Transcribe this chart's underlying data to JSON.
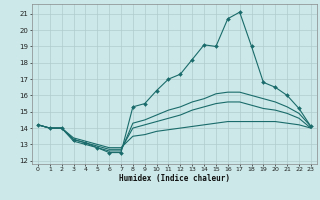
{
  "title": "",
  "xlabel": "Humidex (Indice chaleur)",
  "xlim": [
    -0.5,
    23.5
  ],
  "ylim": [
    11.8,
    21.6
  ],
  "yticks": [
    12,
    13,
    14,
    15,
    16,
    17,
    18,
    19,
    20,
    21
  ],
  "xticks": [
    0,
    1,
    2,
    3,
    4,
    5,
    6,
    7,
    8,
    9,
    10,
    11,
    12,
    13,
    14,
    15,
    16,
    17,
    18,
    19,
    20,
    21,
    22,
    23
  ],
  "background_color": "#cce8e8",
  "grid_color": "#b0cccc",
  "line_color": "#1a6b6b",
  "lines": [
    {
      "x": [
        0,
        1,
        2,
        3,
        4,
        5,
        6,
        7,
        8,
        9,
        10,
        11,
        12,
        13,
        14,
        15,
        16,
        17,
        18,
        19,
        20,
        21,
        22,
        23
      ],
      "y": [
        14.2,
        14.0,
        14.0,
        13.3,
        13.1,
        12.8,
        12.5,
        12.5,
        15.3,
        15.5,
        16.3,
        17.0,
        17.3,
        18.2,
        19.1,
        19.0,
        20.7,
        21.1,
        19.0,
        16.8,
        16.5,
        16.0,
        15.2,
        14.1
      ],
      "has_marker": true
    },
    {
      "x": [
        0,
        1,
        2,
        3,
        4,
        5,
        6,
        7,
        8,
        9,
        10,
        11,
        12,
        13,
        14,
        15,
        16,
        17,
        18,
        19,
        20,
        21,
        22,
        23
      ],
      "y": [
        14.2,
        14.0,
        14.0,
        13.2,
        13.0,
        12.8,
        12.6,
        12.6,
        14.3,
        14.5,
        14.8,
        15.1,
        15.3,
        15.6,
        15.8,
        16.1,
        16.2,
        16.2,
        16.0,
        15.8,
        15.6,
        15.3,
        14.9,
        14.1
      ],
      "has_marker": false
    },
    {
      "x": [
        0,
        1,
        2,
        3,
        4,
        5,
        6,
        7,
        8,
        9,
        10,
        11,
        12,
        13,
        14,
        15,
        16,
        17,
        18,
        19,
        20,
        21,
        22,
        23
      ],
      "y": [
        14.2,
        14.0,
        14.0,
        13.3,
        13.1,
        12.9,
        12.7,
        12.7,
        14.0,
        14.2,
        14.4,
        14.6,
        14.8,
        15.1,
        15.3,
        15.5,
        15.6,
        15.6,
        15.4,
        15.2,
        15.1,
        14.9,
        14.6,
        14.0
      ],
      "has_marker": false
    },
    {
      "x": [
        0,
        1,
        2,
        3,
        4,
        5,
        6,
        7,
        8,
        9,
        10,
        11,
        12,
        13,
        14,
        15,
        16,
        17,
        18,
        19,
        20,
        21,
        22,
        23
      ],
      "y": [
        14.2,
        14.0,
        14.0,
        13.4,
        13.2,
        13.0,
        12.8,
        12.8,
        13.5,
        13.6,
        13.8,
        13.9,
        14.0,
        14.1,
        14.2,
        14.3,
        14.4,
        14.4,
        14.4,
        14.4,
        14.4,
        14.3,
        14.2,
        14.0
      ],
      "has_marker": false
    }
  ]
}
